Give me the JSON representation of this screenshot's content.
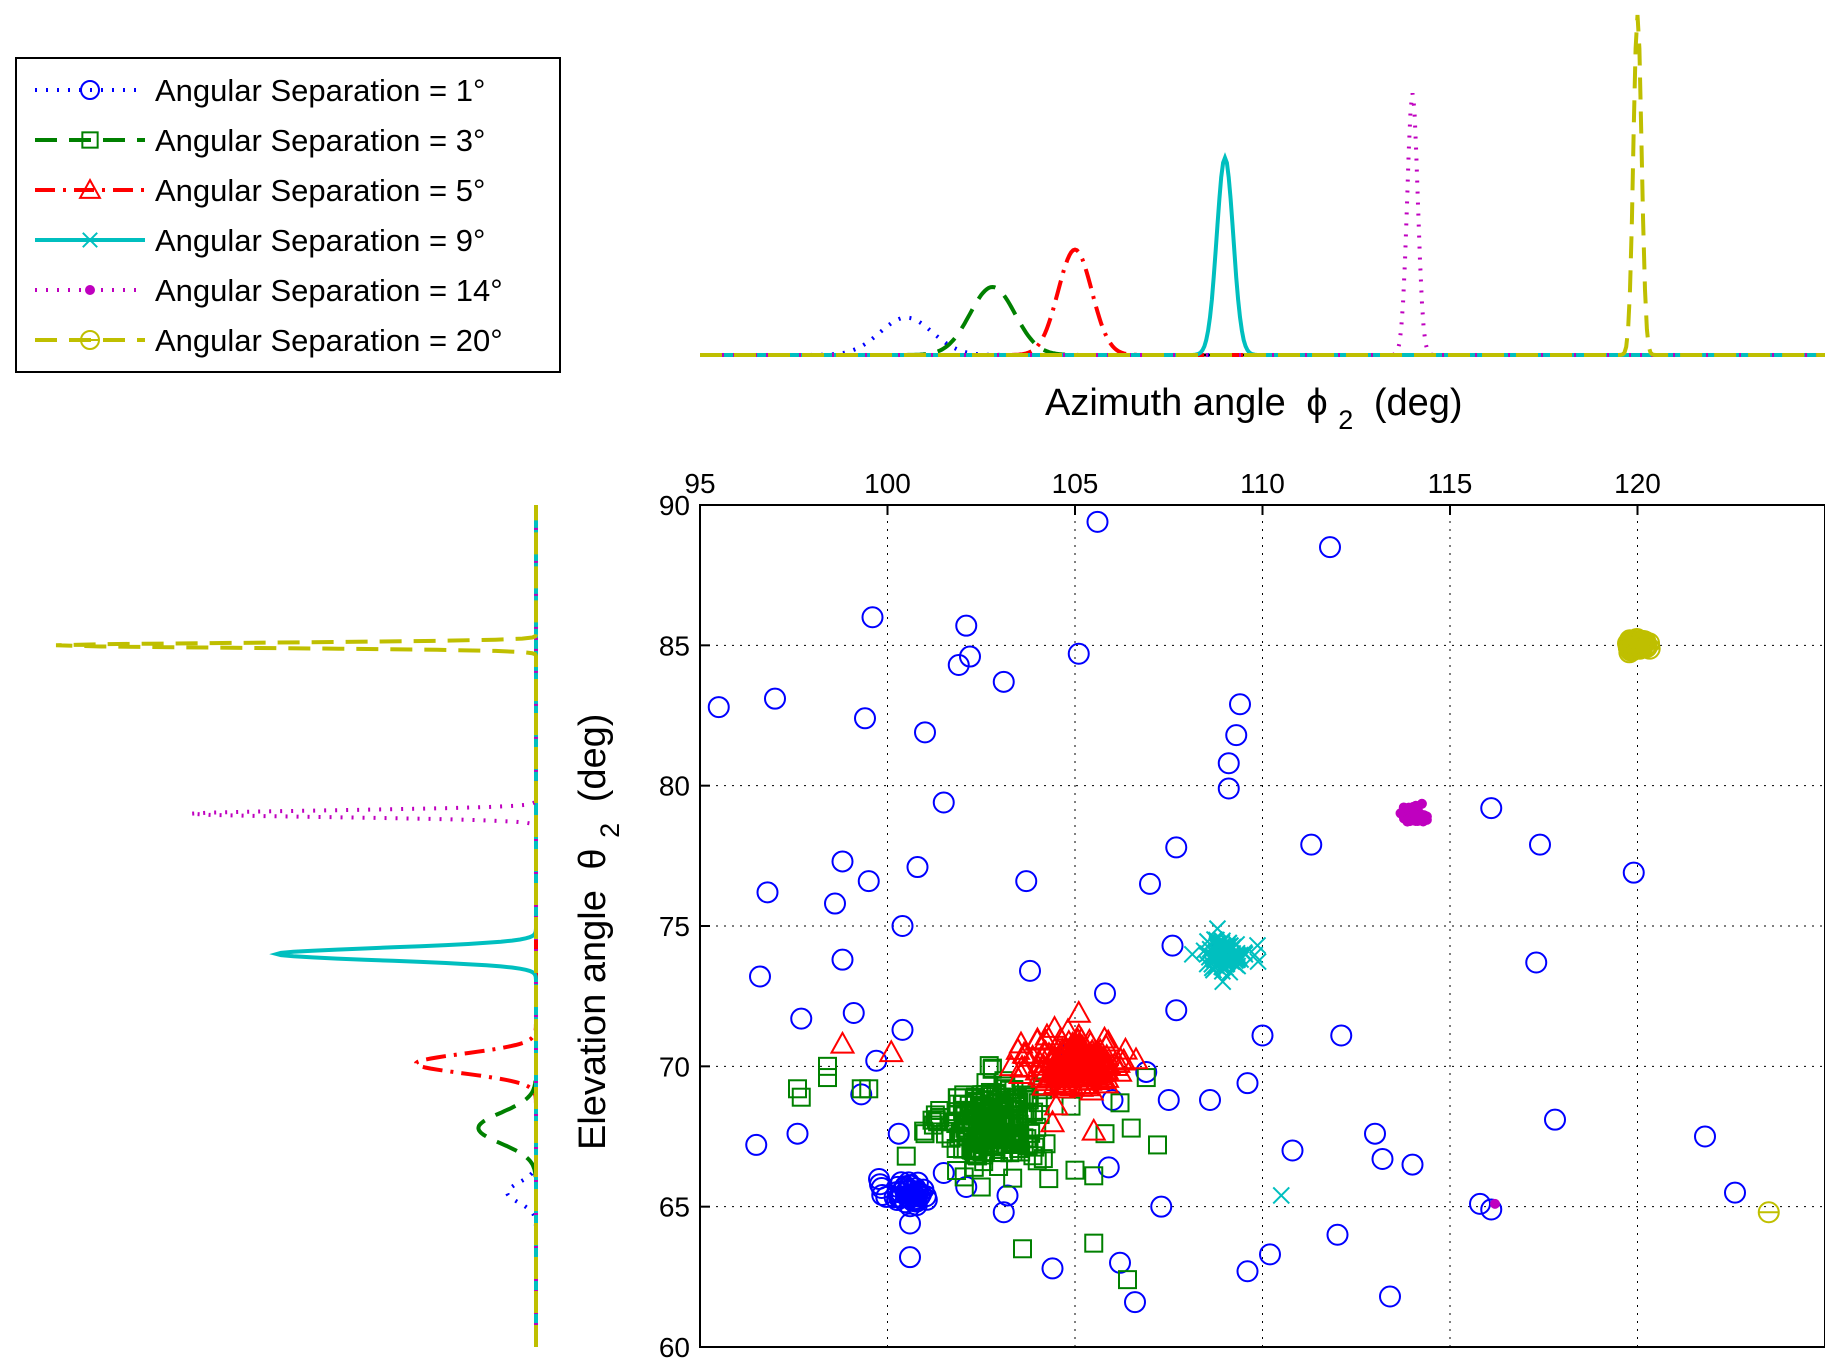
{
  "chart_data": {
    "type": "scatter",
    "xlabel": "Azimuth angle",
    "xlabel_symbol": "ϕ",
    "xlabel_sub": "2",
    "xlabel_unit": "(deg)",
    "ylabel": "Elevation angle",
    "ylabel_symbol": "θ",
    "ylabel_sub": "2",
    "ylabel_unit": "(deg)",
    "xlim": [
      95,
      125
    ],
    "ylim": [
      60,
      90
    ],
    "xticks": [
      "95",
      "100",
      "105",
      "110",
      "115",
      "120"
    ],
    "yticks": [
      "60",
      "65",
      "70",
      "75",
      "80",
      "85",
      "90"
    ],
    "grid": true,
    "legend_position": "top-left",
    "series": [
      {
        "name": "Angular Separation = 1°",
        "color": "#0000ff",
        "marker": "circle",
        "line": "dotted",
        "cluster": {
          "x": 100.5,
          "y": 65.5,
          "n": 45,
          "sx": 0.3,
          "sy": 0.25
        },
        "points": [
          [
            95.5,
            82.8
          ],
          [
            97.0,
            83.1
          ],
          [
            96.5,
            67.2
          ],
          [
            96.6,
            73.2
          ],
          [
            96.8,
            76.2
          ],
          [
            97.6,
            67.6
          ],
          [
            97.7,
            71.7
          ],
          [
            98.6,
            75.8
          ],
          [
            98.8,
            77.3
          ],
          [
            98.8,
            73.8
          ],
          [
            99.1,
            71.9
          ],
          [
            99.3,
            69.0
          ],
          [
            99.4,
            82.4
          ],
          [
            99.5,
            76.6
          ],
          [
            99.6,
            86.0
          ],
          [
            99.7,
            70.2
          ],
          [
            99.8,
            65.8
          ],
          [
            100.3,
            67.6
          ],
          [
            100.4,
            71.3
          ],
          [
            100.4,
            75.0
          ],
          [
            100.6,
            64.4
          ],
          [
            100.6,
            63.2
          ],
          [
            100.8,
            77.1
          ],
          [
            101.0,
            81.9
          ],
          [
            101.5,
            79.4
          ],
          [
            101.5,
            66.2
          ],
          [
            101.9,
            84.3
          ],
          [
            102.1,
            85.7
          ],
          [
            102.2,
            84.6
          ],
          [
            102.1,
            65.7
          ],
          [
            103.1,
            83.7
          ],
          [
            103.2,
            65.4
          ],
          [
            103.1,
            64.8
          ],
          [
            103.7,
            76.6
          ],
          [
            103.8,
            73.4
          ],
          [
            104.4,
            62.8
          ],
          [
            104.9,
            70.5
          ],
          [
            105.1,
            84.7
          ],
          [
            105.6,
            89.4
          ],
          [
            105.8,
            72.6
          ],
          [
            105.9,
            66.4
          ],
          [
            106.0,
            68.8
          ],
          [
            106.2,
            63.0
          ],
          [
            106.6,
            61.6
          ],
          [
            106.9,
            69.8
          ],
          [
            107.0,
            76.5
          ],
          [
            107.3,
            65.0
          ],
          [
            107.5,
            68.8
          ],
          [
            107.6,
            74.3
          ],
          [
            107.7,
            77.8
          ],
          [
            107.7,
            72.0
          ],
          [
            108.6,
            68.8
          ],
          [
            108.9,
            74.1
          ],
          [
            109.1,
            80.8
          ],
          [
            109.1,
            79.9
          ],
          [
            109.3,
            81.8
          ],
          [
            109.4,
            82.9
          ],
          [
            109.6,
            69.4
          ],
          [
            109.6,
            62.7
          ],
          [
            110.0,
            71.1
          ],
          [
            110.2,
            63.3
          ],
          [
            110.8,
            67.0
          ],
          [
            111.3,
            77.9
          ],
          [
            111.8,
            88.5
          ],
          [
            112.0,
            64.0
          ],
          [
            112.1,
            71.1
          ],
          [
            113.0,
            67.6
          ],
          [
            113.2,
            66.7
          ],
          [
            113.4,
            61.8
          ],
          [
            114.0,
            66.5
          ],
          [
            115.8,
            65.1
          ],
          [
            116.1,
            64.9
          ],
          [
            116.1,
            79.2
          ],
          [
            117.3,
            73.7
          ],
          [
            117.4,
            77.9
          ],
          [
            117.8,
            68.1
          ],
          [
            119.9,
            76.9
          ],
          [
            121.8,
            67.5
          ],
          [
            122.6,
            65.5
          ]
        ]
      },
      {
        "name": "Angular Separation = 3°",
        "color": "#008000",
        "marker": "square",
        "line": "dashed",
        "cluster": {
          "x": 102.8,
          "y": 68.0,
          "n": 230,
          "sx": 0.65,
          "sy": 0.75
        },
        "points": [
          [
            97.6,
            69.2
          ],
          [
            97.7,
            68.9
          ],
          [
            98.4,
            69.6
          ],
          [
            98.4,
            70.0
          ],
          [
            99.3,
            69.2
          ],
          [
            99.5,
            69.2
          ],
          [
            100.5,
            66.8
          ],
          [
            101.0,
            67.6
          ],
          [
            101.3,
            68.1
          ],
          [
            102.5,
            65.7
          ],
          [
            103.6,
            63.5
          ],
          [
            104.3,
            66.0
          ],
          [
            105.0,
            66.3
          ],
          [
            105.5,
            66.1
          ],
          [
            105.5,
            63.7
          ],
          [
            105.8,
            67.6
          ],
          [
            106.2,
            68.7
          ],
          [
            106.4,
            62.4
          ],
          [
            106.5,
            67.8
          ],
          [
            106.9,
            69.6
          ],
          [
            107.2,
            67.2
          ]
        ]
      },
      {
        "name": "Angular Separation = 5°",
        "color": "#ff0000",
        "marker": "triangle",
        "line": "dashdot",
        "cluster": {
          "x": 105.1,
          "y": 70.1,
          "n": 220,
          "sx": 0.6,
          "sy": 0.45
        },
        "points": [
          [
            98.8,
            70.8
          ],
          [
            100.1,
            70.5
          ],
          [
            103.3,
            70.0
          ],
          [
            104.4,
            68.0
          ],
          [
            104.5,
            68.6
          ],
          [
            105.5,
            67.7
          ],
          [
            106.3,
            70.2
          ],
          [
            106.2,
            69.8
          ],
          [
            105.1,
            71.9
          ]
        ]
      },
      {
        "name": "Angular Separation = 9°",
        "color": "#00bfbf",
        "marker": "x",
        "line": "solid",
        "cluster": {
          "x": 109.0,
          "y": 74.0,
          "n": 90,
          "sx": 0.3,
          "sy": 0.3
        },
        "points": [
          [
            110.5,
            65.4
          ]
        ]
      },
      {
        "name": "Angular Separation = 14°",
        "color": "#bf00bf",
        "marker": "dot",
        "line": "dotted",
        "cluster": {
          "x": 114.0,
          "y": 79.0,
          "n": 60,
          "sx": 0.18,
          "sy": 0.14
        },
        "points": [
          [
            116.2,
            65.1
          ]
        ]
      },
      {
        "name": "Angular Separation = 20°",
        "color": "#bfbf00",
        "marker": "circle-minus",
        "line": "dashed",
        "cluster": {
          "x": 120.0,
          "y": 85.0,
          "n": 70,
          "sx": 0.14,
          "sy": 0.1
        },
        "points": [
          [
            123.5,
            64.8
          ]
        ]
      }
    ],
    "marginal_azimuth": [
      {
        "series": 0,
        "center": 100.5,
        "width": 0.7,
        "peak": 0.11
      },
      {
        "series": 1,
        "center": 102.8,
        "width": 0.6,
        "peak": 0.2
      },
      {
        "series": 2,
        "center": 105.0,
        "width": 0.45,
        "peak": 0.31
      },
      {
        "series": 3,
        "center": 109.0,
        "width": 0.22,
        "peak": 0.58
      },
      {
        "series": 4,
        "center": 114.0,
        "width": 0.14,
        "peak": 0.77
      },
      {
        "series": 5,
        "center": 120.0,
        "width": 0.11,
        "peak": 1.0
      }
    ],
    "marginal_elevation": [
      {
        "series": 0,
        "center": 65.5,
        "width": 0.35,
        "peak": 0.06
      },
      {
        "series": 1,
        "center": 67.8,
        "width": 0.55,
        "peak": 0.12
      },
      {
        "series": 2,
        "center": 70.1,
        "width": 0.35,
        "peak": 0.25
      },
      {
        "series": 3,
        "center": 74.0,
        "width": 0.22,
        "peak": 0.54
      },
      {
        "series": 4,
        "center": 79.0,
        "width": 0.12,
        "peak": 0.72
      },
      {
        "series": 5,
        "center": 85.0,
        "width": 0.09,
        "peak": 1.0
      }
    ]
  }
}
